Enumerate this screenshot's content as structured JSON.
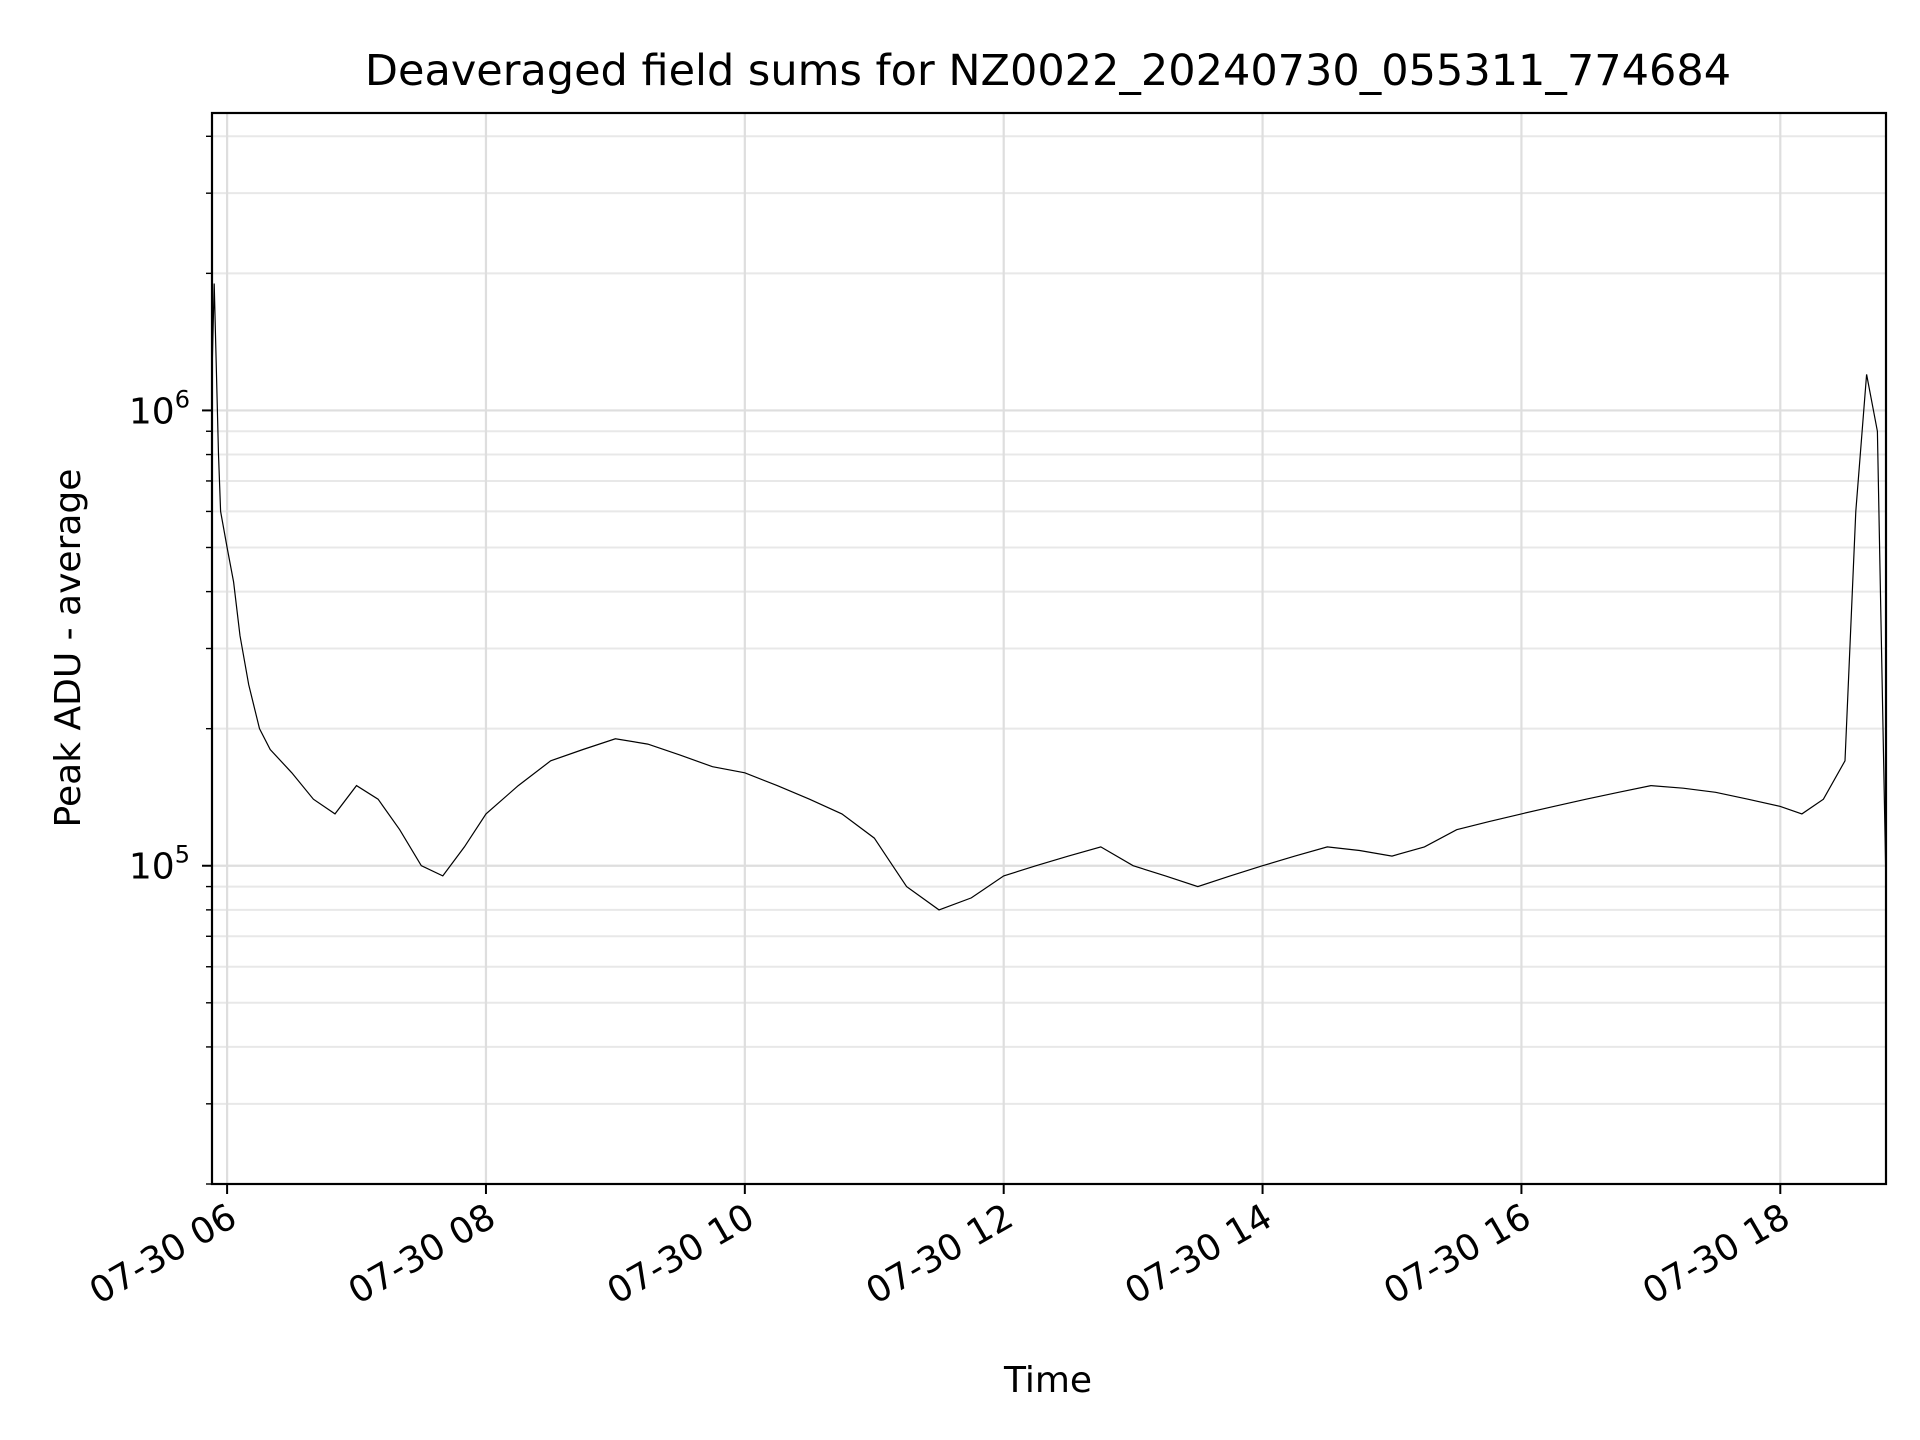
{
  "chart_data": {
    "type": "line",
    "title": "Deaveraged field sums for NZ0022_20240730_055311_774684",
    "xlabel": "Time",
    "ylabel": "Peak ADU - average",
    "yscale": "log",
    "xlim": [
      "2024-07-30 05:53",
      "2024-07-30 18:49"
    ],
    "ylim": [
      20000,
      4500000
    ],
    "grid": true,
    "grid_minor": true,
    "line_color": "#000000",
    "x_tick_labels": [
      "07-30 06",
      "07-30 08",
      "07-30 10",
      "07-30 12",
      "07-30 14",
      "07-30 16",
      "07-30 18"
    ],
    "x_tick_values": [
      "2024-07-30 06:00",
      "2024-07-30 08:00",
      "2024-07-30 10:00",
      "2024-07-30 12:00",
      "2024-07-30 14:00",
      "2024-07-30 16:00",
      "2024-07-30 18:00"
    ],
    "y_tick_labels": [
      {
        "base": "10",
        "exp": "5",
        "value": 100000
      },
      {
        "base": "10",
        "exp": "6",
        "value": 1000000
      }
    ],
    "series": [
      {
        "x": [
          "2024-07-30 05:53",
          "2024-07-30 05:54",
          "2024-07-30 05:56",
          "2024-07-30 05:57",
          "2024-07-30 06:00",
          "2024-07-30 06:03",
          "2024-07-30 06:06",
          "2024-07-30 06:10",
          "2024-07-30 06:15",
          "2024-07-30 06:20",
          "2024-07-30 06:30",
          "2024-07-30 06:40",
          "2024-07-30 06:50",
          "2024-07-30 07:00",
          "2024-07-30 07:10",
          "2024-07-30 07:20",
          "2024-07-30 07:30",
          "2024-07-30 07:40",
          "2024-07-30 07:50",
          "2024-07-30 08:00",
          "2024-07-30 08:15",
          "2024-07-30 08:30",
          "2024-07-30 08:45",
          "2024-07-30 09:00",
          "2024-07-30 09:15",
          "2024-07-30 09:30",
          "2024-07-30 09:45",
          "2024-07-30 10:00",
          "2024-07-30 10:15",
          "2024-07-30 10:30",
          "2024-07-30 10:45",
          "2024-07-30 11:00",
          "2024-07-30 11:15",
          "2024-07-30 11:30",
          "2024-07-30 11:45",
          "2024-07-30 12:00",
          "2024-07-30 12:15",
          "2024-07-30 12:30",
          "2024-07-30 12:45",
          "2024-07-30 13:00",
          "2024-07-30 13:15",
          "2024-07-30 13:30",
          "2024-07-30 13:45",
          "2024-07-30 14:00",
          "2024-07-30 14:15",
          "2024-07-30 14:30",
          "2024-07-30 14:45",
          "2024-07-30 15:00",
          "2024-07-30 15:15",
          "2024-07-30 15:30",
          "2024-07-30 15:45",
          "2024-07-30 16:00",
          "2024-07-30 16:15",
          "2024-07-30 16:30",
          "2024-07-30 16:45",
          "2024-07-30 17:00",
          "2024-07-30 17:15",
          "2024-07-30 17:30",
          "2024-07-30 17:45",
          "2024-07-30 18:00",
          "2024-07-30 18:10",
          "2024-07-30 18:20",
          "2024-07-30 18:30",
          "2024-07-30 18:35",
          "2024-07-30 18:40",
          "2024-07-30 18:45",
          "2024-07-30 18:49"
        ],
        "y": [
          1200000,
          1900000,
          800000,
          600000,
          500000,
          420000,
          320000,
          250000,
          200000,
          180000,
          160000,
          140000,
          130000,
          150000,
          140000,
          120000,
          100000,
          95000,
          110000,
          130000,
          150000,
          170000,
          180000,
          190000,
          185000,
          175000,
          165000,
          160000,
          150000,
          140000,
          130000,
          115000,
          90000,
          80000,
          85000,
          95000,
          100000,
          105000,
          110000,
          100000,
          95000,
          90000,
          95000,
          100000,
          105000,
          110000,
          108000,
          105000,
          110000,
          120000,
          125000,
          130000,
          135000,
          140000,
          145000,
          150000,
          148000,
          145000,
          140000,
          135000,
          130000,
          140000,
          170000,
          600000,
          1200000,
          900000,
          90000
        ]
      }
    ]
  }
}
